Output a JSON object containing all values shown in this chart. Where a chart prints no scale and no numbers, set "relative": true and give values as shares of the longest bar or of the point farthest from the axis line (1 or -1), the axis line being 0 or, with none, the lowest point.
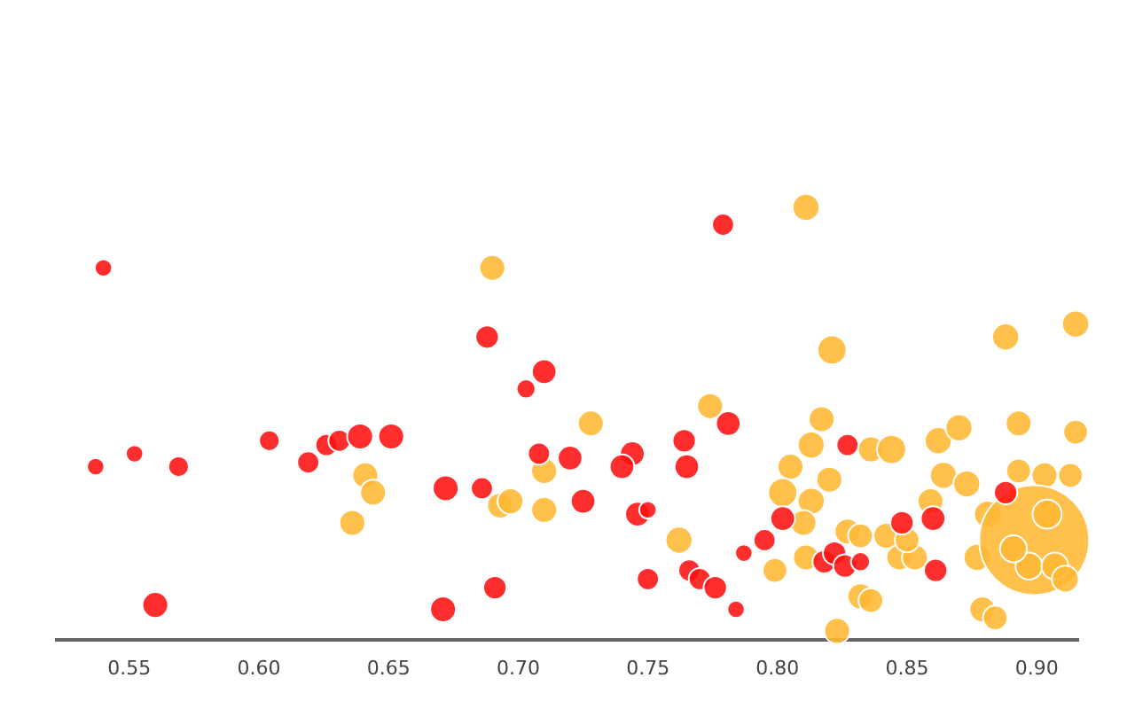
{
  "chart_data": {
    "type": "bubble",
    "relative": true,
    "xlim": [
      0.522,
      0.916
    ],
    "xticks": [
      {
        "value": 0.55,
        "label": "0.55"
      },
      {
        "value": 0.6,
        "label": "0.60"
      },
      {
        "value": 0.65,
        "label": "0.65"
      },
      {
        "value": 0.7,
        "label": "0.70"
      },
      {
        "value": 0.75,
        "label": "0.75"
      },
      {
        "value": 0.8,
        "label": "0.80"
      },
      {
        "value": 0.85,
        "label": "0.85"
      },
      {
        "value": 0.9,
        "label": "0.90"
      }
    ],
    "grid": false,
    "legend": false,
    "tick_labels": "x",
    "series": [
      {
        "color": "#ff1111",
        "x": [
          0.54,
          0.537,
          0.552,
          0.569,
          0.56,
          0.604,
          0.619,
          0.626,
          0.631,
          0.639,
          0.651,
          0.672,
          0.671,
          0.686,
          0.691,
          0.688,
          0.703,
          0.71,
          0.708,
          0.72,
          0.779,
          0.725,
          0.744,
          0.74,
          0.746,
          0.75,
          0.75,
          0.764,
          0.765,
          0.781,
          0.766,
          0.77,
          0.776,
          0.784,
          0.787,
          0.795,
          0.802,
          0.818,
          0.822,
          0.826,
          0.832,
          0.827,
          0.848,
          0.86,
          0.861,
          0.888
        ],
        "values": [
          0.86,
          0.4,
          0.43,
          0.4,
          0.08,
          0.46,
          0.41,
          0.45,
          0.46,
          0.47,
          0.47,
          0.35,
          0.07,
          0.35,
          0.12,
          0.7,
          0.58,
          0.62,
          0.43,
          0.42,
          0.96,
          0.32,
          0.43,
          0.4,
          0.29,
          0.3,
          0.14,
          0.46,
          0.4,
          0.5,
          0.16,
          0.14,
          0.12,
          0.07,
          0.2,
          0.23,
          0.28,
          0.18,
          0.2,
          0.17,
          0.18,
          0.45,
          0.27,
          0.28,
          0.16,
          0.34
        ],
        "sizes": [
          0.025,
          0.025,
          0.025,
          0.035,
          0.055,
          0.035,
          0.04,
          0.04,
          0.04,
          0.055,
          0.055,
          0.055,
          0.055,
          0.04,
          0.045,
          0.045,
          0.03,
          0.05,
          0.04,
          0.05,
          0.04,
          0.05,
          0.05,
          0.05,
          0.05,
          0.025,
          0.04,
          0.045,
          0.05,
          0.05,
          0.04,
          0.04,
          0.045,
          0.025,
          0.025,
          0.04,
          0.05,
          0.045,
          0.045,
          0.045,
          0.03,
          0.04,
          0.045,
          0.05,
          0.045,
          0.045
        ]
      },
      {
        "color": "#ffb733",
        "x": [
          0.69,
          0.641,
          0.644,
          0.636,
          0.693,
          0.697,
          0.71,
          0.71,
          0.811,
          0.821,
          0.888,
          0.915,
          0.728,
          0.774,
          0.817,
          0.813,
          0.805,
          0.802,
          0.82,
          0.813,
          0.81,
          0.762,
          0.799,
          0.811,
          0.827,
          0.832,
          0.832,
          0.836,
          0.823,
          0.836,
          0.844,
          0.842,
          0.847,
          0.853,
          0.85,
          0.859,
          0.862,
          0.87,
          0.893,
          0.864,
          0.873,
          0.877,
          0.881,
          0.879,
          0.884,
          0.893,
          0.903,
          0.913,
          0.915,
          0.899,
          0.904,
          0.897,
          0.907,
          0.891,
          0.911
        ],
        "values": [
          0.86,
          0.38,
          0.34,
          0.27,
          0.31,
          0.32,
          0.39,
          0.3,
          1,
          0.67,
          0.7,
          0.73,
          0.5,
          0.54,
          0.51,
          0.45,
          0.4,
          0.34,
          0.37,
          0.32,
          0.27,
          0.23,
          0.16,
          0.19,
          0.25,
          0.24,
          0.1,
          0.09,
          0.02,
          0.44,
          0.44,
          0.24,
          0.19,
          0.19,
          0.23,
          0.32,
          0.46,
          0.49,
          0.5,
          0.38,
          0.36,
          0.19,
          0.29,
          0.07,
          0.05,
          0.39,
          0.38,
          0.38,
          0.48,
          0.23,
          0.29,
          0.17,
          0.17,
          0.21,
          0.14
        ],
        "sizes": [
          0.055,
          0.055,
          0.055,
          0.055,
          0.055,
          0.055,
          0.055,
          0.055,
          0.06,
          0.07,
          0.06,
          0.06,
          0.055,
          0.055,
          0.055,
          0.06,
          0.055,
          0.07,
          0.055,
          0.06,
          0.055,
          0.06,
          0.05,
          0.055,
          0.055,
          0.05,
          0.055,
          0.05,
          0.055,
          0.055,
          0.07,
          0.055,
          0.055,
          0.055,
          0.05,
          0.055,
          0.06,
          0.06,
          0.055,
          0.06,
          0.06,
          0.06,
          0.06,
          0.055,
          0.05,
          0.05,
          0.055,
          0.05,
          0.05,
          1,
          0.07,
          0.06,
          0.06,
          0.06,
          0.06
        ]
      }
    ]
  }
}
